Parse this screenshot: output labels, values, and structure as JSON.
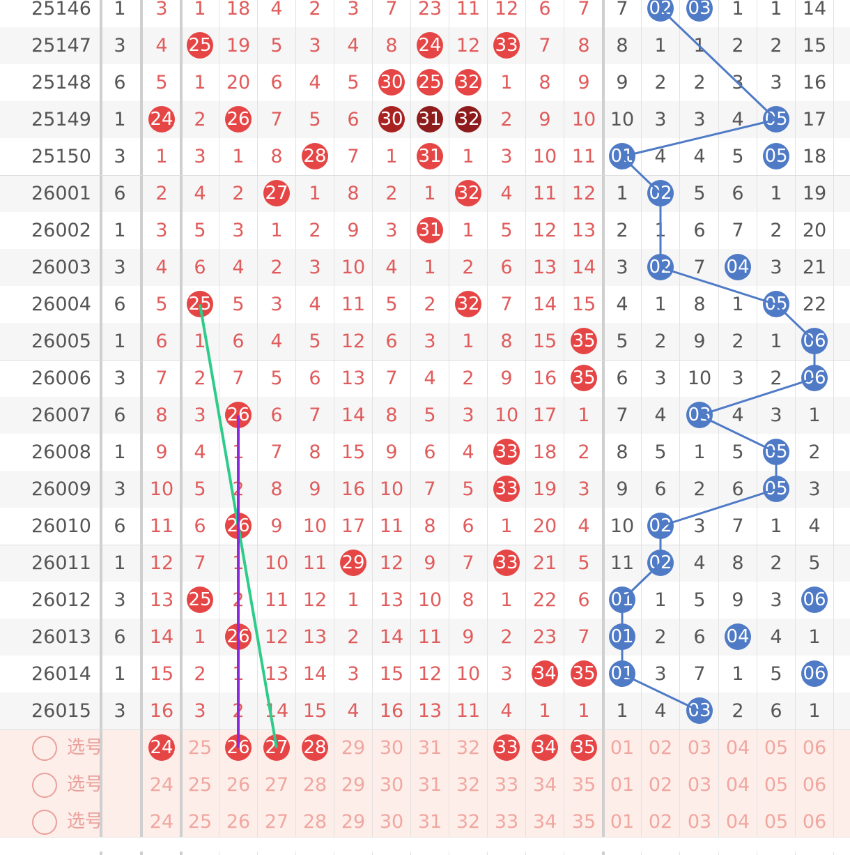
{
  "rows": [
    {
      "period": "25146",
      "c1": "1",
      "c2": "3",
      "red": [
        "1",
        "18",
        "4",
        "2",
        "3",
        "7",
        "23",
        "11",
        "12",
        "6",
        "7"
      ],
      "blue": [
        "7",
        "02",
        "03",
        "1",
        "1",
        "14"
      ]
    },
    {
      "period": "25147",
      "c1": "3",
      "c2": "4",
      "red": [
        "25",
        "19",
        "5",
        "3",
        "4",
        "8",
        "24",
        "12",
        "33",
        "7",
        "8"
      ],
      "blue": [
        "8",
        "1",
        "1",
        "2",
        "2",
        "15"
      ]
    },
    {
      "period": "25148",
      "c1": "6",
      "c2": "5",
      "red": [
        "1",
        "20",
        "6",
        "4",
        "5",
        "30",
        "25",
        "32",
        "1",
        "8",
        "9"
      ],
      "blue": [
        "9",
        "2",
        "2",
        "3",
        "3",
        "16"
      ]
    },
    {
      "period": "25149",
      "c1": "1",
      "c2": "24",
      "red": [
        "2",
        "26",
        "7",
        "5",
        "6",
        "30",
        "31",
        "32",
        "2",
        "9",
        "10"
      ],
      "blue": [
        "10",
        "3",
        "3",
        "4",
        "05",
        "17"
      ]
    },
    {
      "period": "25150",
      "c1": "3",
      "c2": "1",
      "red": [
        "3",
        "1",
        "8",
        "28",
        "7",
        "1",
        "31",
        "1",
        "3",
        "10",
        "11"
      ],
      "blue": [
        "01",
        "4",
        "4",
        "5",
        "05",
        "18"
      ]
    },
    {
      "period": "26001",
      "c1": "6",
      "c2": "2",
      "red": [
        "4",
        "2",
        "27",
        "1",
        "8",
        "2",
        "1",
        "32",
        "4",
        "11",
        "12"
      ],
      "blue": [
        "1",
        "02",
        "5",
        "6",
        "1",
        "19"
      ]
    },
    {
      "period": "26002",
      "c1": "1",
      "c2": "3",
      "red": [
        "5",
        "3",
        "1",
        "2",
        "9",
        "3",
        "31",
        "1",
        "5",
        "12",
        "13"
      ],
      "blue": [
        "2",
        "1",
        "6",
        "7",
        "2",
        "20"
      ]
    },
    {
      "period": "26003",
      "c1": "3",
      "c2": "4",
      "red": [
        "6",
        "4",
        "2",
        "3",
        "10",
        "4",
        "1",
        "2",
        "6",
        "13",
        "14"
      ],
      "blue": [
        "3",
        "02",
        "7",
        "04",
        "3",
        "21"
      ]
    },
    {
      "period": "26004",
      "c1": "6",
      "c2": "5",
      "red": [
        "25",
        "5",
        "3",
        "4",
        "11",
        "5",
        "2",
        "32",
        "7",
        "14",
        "15"
      ],
      "blue": [
        "4",
        "1",
        "8",
        "1",
        "05",
        "22"
      ]
    },
    {
      "period": "26005",
      "c1": "1",
      "c2": "6",
      "red": [
        "1",
        "6",
        "4",
        "5",
        "12",
        "6",
        "3",
        "1",
        "8",
        "15",
        "35"
      ],
      "blue": [
        "5",
        "2",
        "9",
        "2",
        "1",
        "06"
      ]
    },
    {
      "period": "26006",
      "c1": "3",
      "c2": "7",
      "red": [
        "2",
        "7",
        "5",
        "6",
        "13",
        "7",
        "4",
        "2",
        "9",
        "16",
        "35"
      ],
      "blue": [
        "6",
        "3",
        "10",
        "3",
        "2",
        "06"
      ]
    },
    {
      "period": "26007",
      "c1": "6",
      "c2": "8",
      "red": [
        "3",
        "26",
        "6",
        "7",
        "14",
        "8",
        "5",
        "3",
        "10",
        "17",
        "1"
      ],
      "blue": [
        "7",
        "4",
        "03",
        "4",
        "3",
        "1"
      ]
    },
    {
      "period": "26008",
      "c1": "1",
      "c2": "9",
      "red": [
        "4",
        "1",
        "7",
        "8",
        "15",
        "9",
        "6",
        "4",
        "33",
        "18",
        "2"
      ],
      "blue": [
        "8",
        "5",
        "1",
        "5",
        "05",
        "2"
      ]
    },
    {
      "period": "26009",
      "c1": "3",
      "c2": "10",
      "red": [
        "5",
        "2",
        "8",
        "9",
        "16",
        "10",
        "7",
        "5",
        "33",
        "19",
        "3"
      ],
      "blue": [
        "9",
        "6",
        "2",
        "6",
        "05",
        "3"
      ]
    },
    {
      "period": "26010",
      "c1": "6",
      "c2": "11",
      "red": [
        "6",
        "26",
        "9",
        "10",
        "17",
        "11",
        "8",
        "6",
        "1",
        "20",
        "4"
      ],
      "blue": [
        "10",
        "02",
        "3",
        "7",
        "1",
        "4"
      ]
    },
    {
      "period": "26011",
      "c1": "1",
      "c2": "12",
      "red": [
        "7",
        "1",
        "10",
        "11",
        "29",
        "12",
        "9",
        "7",
        "33",
        "21",
        "5"
      ],
      "blue": [
        "11",
        "02",
        "4",
        "8",
        "2",
        "5"
      ]
    },
    {
      "period": "26012",
      "c1": "3",
      "c2": "13",
      "red": [
        "25",
        "2",
        "11",
        "12",
        "1",
        "13",
        "10",
        "8",
        "1",
        "22",
        "6"
      ],
      "blue": [
        "01",
        "1",
        "5",
        "9",
        "3",
        "06"
      ]
    },
    {
      "period": "26013",
      "c1": "6",
      "c2": "14",
      "red": [
        "1",
        "26",
        "12",
        "13",
        "2",
        "14",
        "11",
        "9",
        "2",
        "23",
        "7"
      ],
      "blue": [
        "01",
        "2",
        "6",
        "04",
        "4",
        "1"
      ]
    },
    {
      "period": "26014",
      "c1": "1",
      "c2": "15",
      "red": [
        "2",
        "1",
        "13",
        "14",
        "3",
        "15",
        "12",
        "10",
        "3",
        "34",
        "35"
      ],
      "blue": [
        "01",
        "3",
        "7",
        "1",
        "5",
        "06"
      ]
    },
    {
      "period": "26015",
      "c1": "3",
      "c2": "16",
      "red": [
        "3",
        "2",
        "14",
        "15",
        "4",
        "16",
        "13",
        "11",
        "4",
        "1",
        "1"
      ],
      "blue": [
        "1",
        "4",
        "03",
        "2",
        "6",
        "1"
      ]
    }
  ],
  "select_rows": [
    {
      "label": "选号",
      "red": [
        "24",
        "25",
        "26",
        "27",
        "28",
        "29",
        "30",
        "31",
        "32",
        "33",
        "34",
        "35"
      ],
      "blue": [
        "01",
        "02",
        "03",
        "04",
        "05",
        "06"
      ],
      "picked_red": [
        "24",
        "26",
        "27",
        "28",
        "33",
        "34",
        "35"
      ]
    },
    {
      "label": "选号",
      "red": [
        "24",
        "25",
        "26",
        "27",
        "28",
        "29",
        "30",
        "31",
        "32",
        "33",
        "34",
        "35"
      ],
      "blue": [
        "01",
        "02",
        "03",
        "04",
        "05",
        "06"
      ],
      "picked_red": []
    },
    {
      "label": "选号",
      "red": [
        "24",
        "25",
        "26",
        "27",
        "28",
        "29",
        "30",
        "31",
        "32",
        "33",
        "34",
        "35"
      ],
      "blue": [
        "01",
        "02",
        "03",
        "04",
        "05",
        "06"
      ],
      "picked_red": []
    }
  ],
  "colors": {
    "red_ball": "#e64545",
    "dark_ball": "#a82222",
    "blue_ball": "#4f7ac6",
    "green_line": "#2ecc8a",
    "purple_line": "#8a2be2"
  }
}
